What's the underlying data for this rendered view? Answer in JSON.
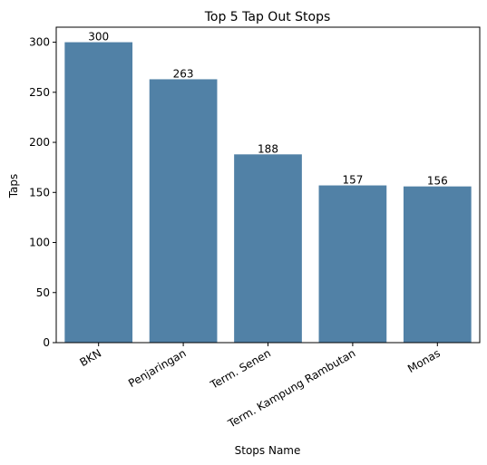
{
  "chart_data": {
    "type": "bar",
    "title": "Top 5 Tap Out Stops",
    "xlabel": "Stops Name",
    "ylabel": "Taps",
    "categories": [
      "BKN",
      "Penjaringan",
      "Term. Senen",
      "Term. Kampung Rambutan",
      "Monas"
    ],
    "values": [
      300,
      263,
      188,
      157,
      156
    ],
    "data_labels": [
      "300",
      "263",
      "188",
      "157",
      "156"
    ],
    "ylim": [
      0,
      315
    ],
    "yticks": [
      0,
      50,
      100,
      150,
      200,
      250,
      300
    ],
    "ytick_labels": [
      "0",
      "50",
      "100",
      "150",
      "200",
      "250",
      "300"
    ],
    "grid": false,
    "bar_color": "#5181a6",
    "x_tick_rotation_deg": -30
  }
}
